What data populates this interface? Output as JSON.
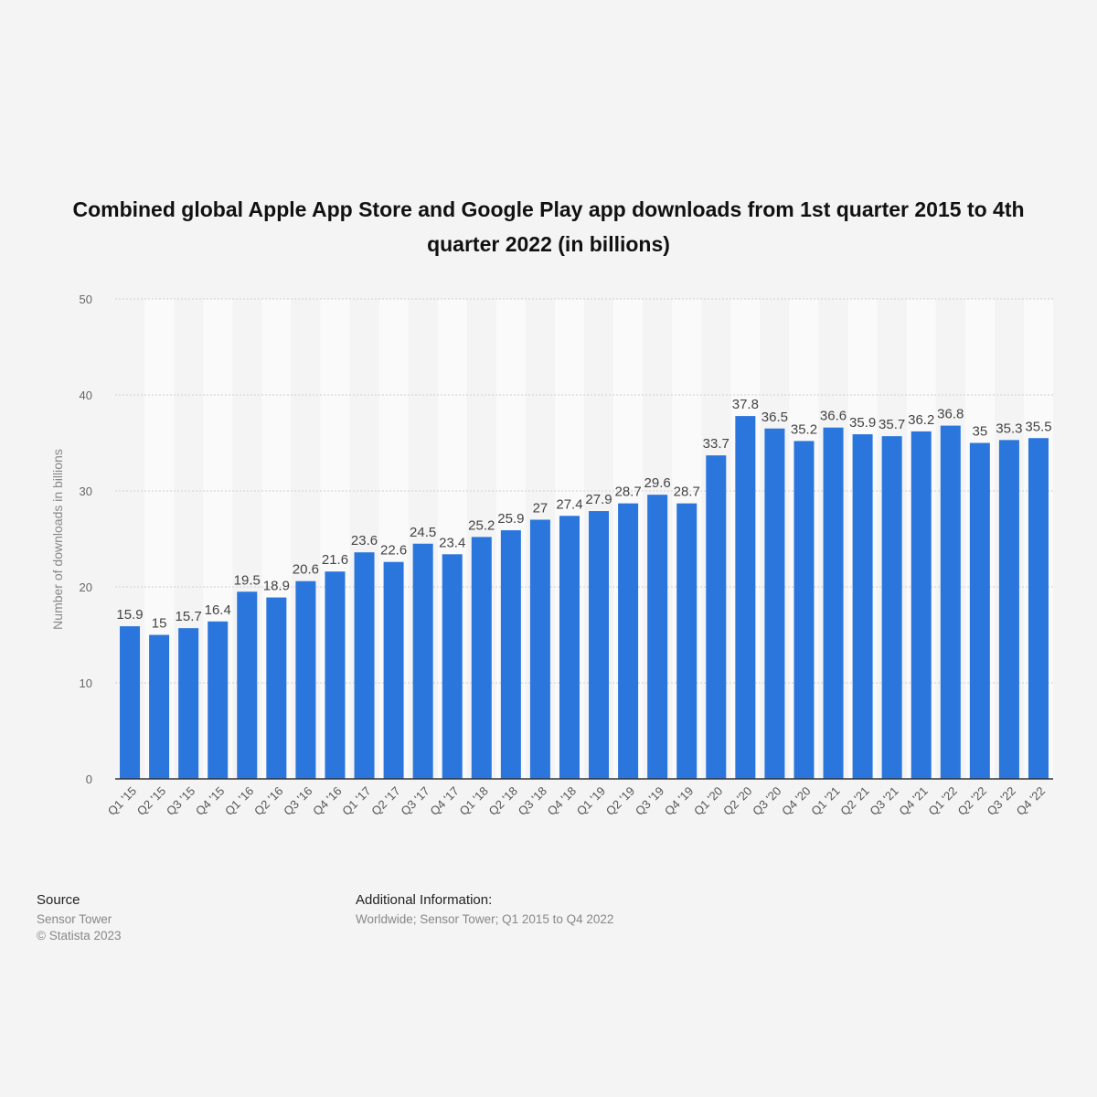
{
  "chart_data": {
    "type": "bar",
    "title": "Combined global Apple App Store and Google Play app downloads from 1st quarter 2015 to 4th quarter 2022 (in billions)",
    "ylabel": "Number of downloads in billions",
    "xlabel": "",
    "ylim": [
      0,
      50
    ],
    "yticks": [
      0,
      10,
      20,
      30,
      40,
      50
    ],
    "grid": true,
    "categories": [
      "Q1 '15",
      "Q2 '15",
      "Q3 '15",
      "Q4 '15",
      "Q1 '16",
      "Q2 '16",
      "Q3 '16",
      "Q4 '16",
      "Q1 '17",
      "Q2 '17",
      "Q3 '17",
      "Q4 '17",
      "Q1 '18",
      "Q2 '18",
      "Q3 '18",
      "Q4 '18",
      "Q1 '19",
      "Q2 '19",
      "Q3 '19",
      "Q4 '19",
      "Q1 '20",
      "Q2 '20",
      "Q3 '20",
      "Q4 '20",
      "Q1 '21",
      "Q2 '21",
      "Q3 '21",
      "Q4 '21",
      "Q1 '22",
      "Q2 '22",
      "Q3 '22",
      "Q4 '22"
    ],
    "values": [
      15.9,
      15,
      15.7,
      16.4,
      19.5,
      18.9,
      20.6,
      21.6,
      23.6,
      22.6,
      24.5,
      23.4,
      25.2,
      25.9,
      27,
      27.4,
      27.9,
      28.7,
      29.6,
      28.7,
      33.7,
      37.8,
      36.5,
      35.2,
      36.6,
      35.9,
      35.7,
      36.2,
      36.8,
      35,
      35.3,
      35.5
    ],
    "bar_color": "#2a76dd"
  },
  "footer": {
    "source_heading": "Source",
    "source_lines": [
      "Sensor Tower",
      "© Statista 2023"
    ],
    "info_heading": "Additional Information:",
    "info_line": "Worldwide; Sensor Tower; Q1 2015 to Q4 2022"
  }
}
